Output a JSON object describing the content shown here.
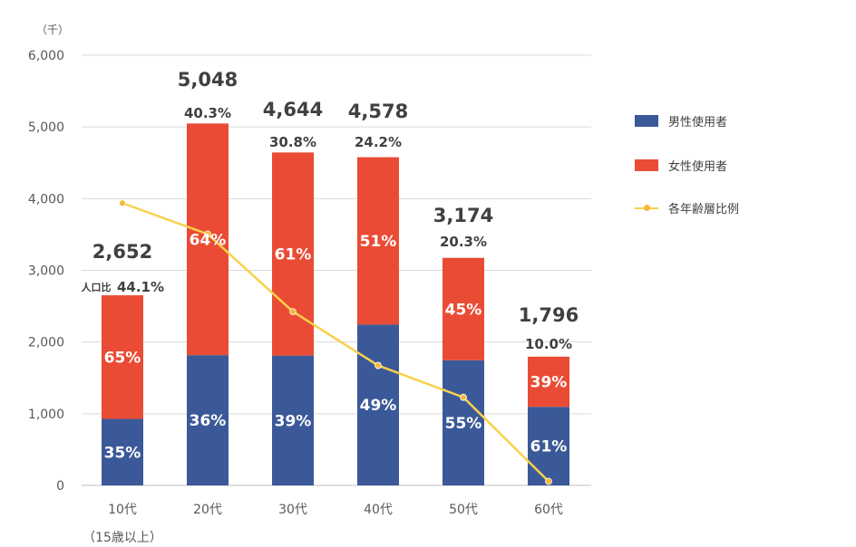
{
  "chart_data": {
    "type": "bar",
    "stacked": true,
    "unit_label": "（千）",
    "categories": [
      "10代",
      "20代",
      "30代",
      "40代",
      "50代",
      "60代"
    ],
    "category_sublabels": [
      "（15歳以上）",
      "",
      "",
      "",
      "",
      ""
    ],
    "ylim": [
      0,
      6000
    ],
    "yticks": [
      "0",
      "1,000",
      "2,000",
      "3,000",
      "4,000",
      "5,000",
      "6,000"
    ],
    "grid": true,
    "legend_position": "right",
    "totals": [
      2652,
      5048,
      4644,
      4578,
      3174,
      1796
    ],
    "total_labels": [
      "2,652",
      "5,048",
      "4,644",
      "4,578",
      "3,174",
      "1,796"
    ],
    "series": [
      {
        "name": "男性使用者",
        "color": "#3b5998",
        "values": [
          928,
          1817,
          1811,
          2243,
          1746,
          1096
        ],
        "labels": [
          "35%",
          "36%",
          "39%",
          "49%",
          "55%",
          "61%"
        ]
      },
      {
        "name": "女性使用者",
        "color": "#ea4b34",
        "values": [
          1724,
          3231,
          2833,
          2335,
          1428,
          700
        ],
        "labels": [
          "65%",
          "64%",
          "61%",
          "51%",
          "45%",
          "39%"
        ]
      }
    ],
    "line_series": {
      "name": "各年齢層比例",
      "color": "#f9d14a",
      "marker_color": "#f6b93b",
      "values": [
        44.1,
        40.3,
        30.8,
        24.2,
        20.3,
        10.0
      ],
      "labels": [
        "44.1%",
        "40.3%",
        "30.8%",
        "24.2%",
        "20.3%",
        "10.0%"
      ],
      "first_label_prefix": "人口比"
    }
  }
}
